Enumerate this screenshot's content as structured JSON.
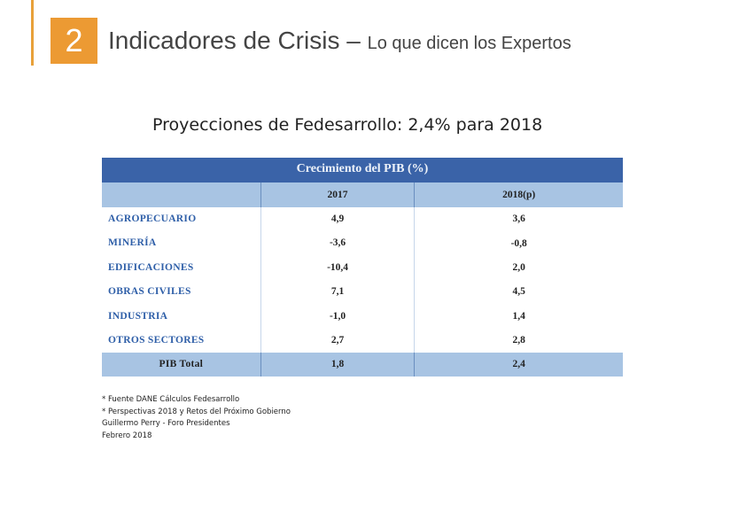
{
  "slide": {
    "number": "2",
    "title_main": "Indicadores de Crisis – ",
    "title_sub": "Lo que dicen los Expertos",
    "subtitle": "Proyecciones de Fedesarrollo: 2,4% para 2018"
  },
  "table": {
    "title": "Crecimiento del PIB (%)",
    "columns": [
      "",
      "2017",
      "2018(p)"
    ],
    "rows": [
      {
        "label": "AGROPECUARIO",
        "v2017": "4,9",
        "v2018": "3,6"
      },
      {
        "label": "MINERÍA",
        "v2017": "-3,6",
        "v2018": "-0,8"
      },
      {
        "label": "EDIFICACIONES",
        "v2017": "-10,4",
        "v2018": "2,0"
      },
      {
        "label": "OBRAS CIVILES",
        "v2017": "7,1",
        "v2018": "4,5"
      },
      {
        "label": "INDUSTRIA",
        "v2017": "-1,0",
        "v2018": "1,4"
      },
      {
        "label": "OTROS SECTORES",
        "v2017": "2,7",
        "v2018": "2,8"
      }
    ],
    "total": {
      "label": "PIB Total",
      "v2017": "1,8",
      "v2018": "2,4"
    }
  },
  "notes": [
    "* Fuente DANE Cálculos Fedesarrollo",
    "* Perspectivas 2018 y Retos del Próximo Gobierno",
    "Guillermo Perry - Foro Presidentes",
    "Febrero 2018"
  ],
  "colors": {
    "accent": "#ec9a33",
    "table_header": "#3a63a8",
    "table_subheader": "#a8c4e3",
    "label_text": "#2f5fa8"
  }
}
